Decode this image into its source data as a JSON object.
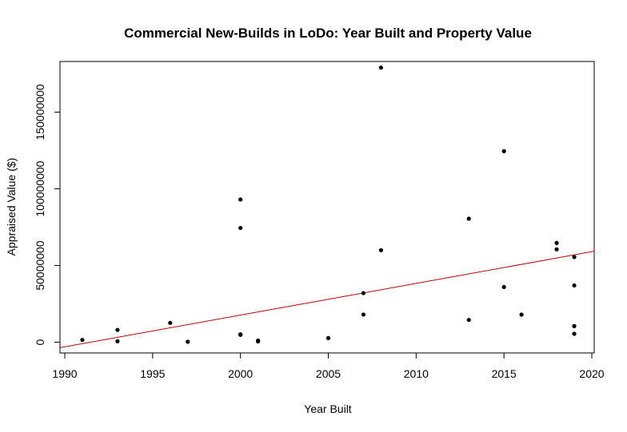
{
  "chart_data": {
    "type": "scatter",
    "title": "Commercial New-Builds in LoDo: Year Built and Property Value",
    "xlabel": "Year Built",
    "ylabel": "Appraised Value ($)",
    "xlim": [
      1990,
      2020
    ],
    "ylim": [
      -7000000,
      183000000
    ],
    "x_ticks": [
      1990,
      1995,
      2000,
      2005,
      2010,
      2015,
      2020
    ],
    "x_tick_labels": [
      "1990",
      "1995",
      "2000",
      "2005",
      "2010",
      "2015",
      "2020"
    ],
    "y_ticks": [
      0,
      50000000,
      100000000,
      150000000
    ],
    "y_tick_labels": [
      "0",
      "50000000",
      "100000000",
      "150000000"
    ],
    "grid": false,
    "point_color": "#000000",
    "line_color": "#c00000",
    "points": [
      {
        "x": 1991,
        "y": 1500000
      },
      {
        "x": 1993,
        "y": 8000000
      },
      {
        "x": 1993,
        "y": 600000
      },
      {
        "x": 1996,
        "y": 12600000
      },
      {
        "x": 1997,
        "y": 300000
      },
      {
        "x": 2000,
        "y": 93000000
      },
      {
        "x": 2000,
        "y": 74500000
      },
      {
        "x": 2000,
        "y": 5100000
      },
      {
        "x": 2000,
        "y": 4800000
      },
      {
        "x": 2001,
        "y": 1100000
      },
      {
        "x": 2001,
        "y": 500000
      },
      {
        "x": 2005,
        "y": 2700000
      },
      {
        "x": 2007,
        "y": 32000000
      },
      {
        "x": 2007,
        "y": 18000000
      },
      {
        "x": 2008,
        "y": 179000000
      },
      {
        "x": 2008,
        "y": 60000000
      },
      {
        "x": 2013,
        "y": 80500000
      },
      {
        "x": 2013,
        "y": 14500000
      },
      {
        "x": 2015,
        "y": 124500000
      },
      {
        "x": 2015,
        "y": 36000000
      },
      {
        "x": 2016,
        "y": 18000000
      },
      {
        "x": 2018,
        "y": 64700000
      },
      {
        "x": 2018,
        "y": 60500000
      },
      {
        "x": 2019,
        "y": 55500000
      },
      {
        "x": 2019,
        "y": 37000000
      },
      {
        "x": 2019,
        "y": 10500000
      },
      {
        "x": 2019,
        "y": 5500000
      }
    ],
    "trend_line": {
      "x": [
        1990,
        2020
      ],
      "y": [
        -3000000,
        59000000
      ]
    }
  }
}
